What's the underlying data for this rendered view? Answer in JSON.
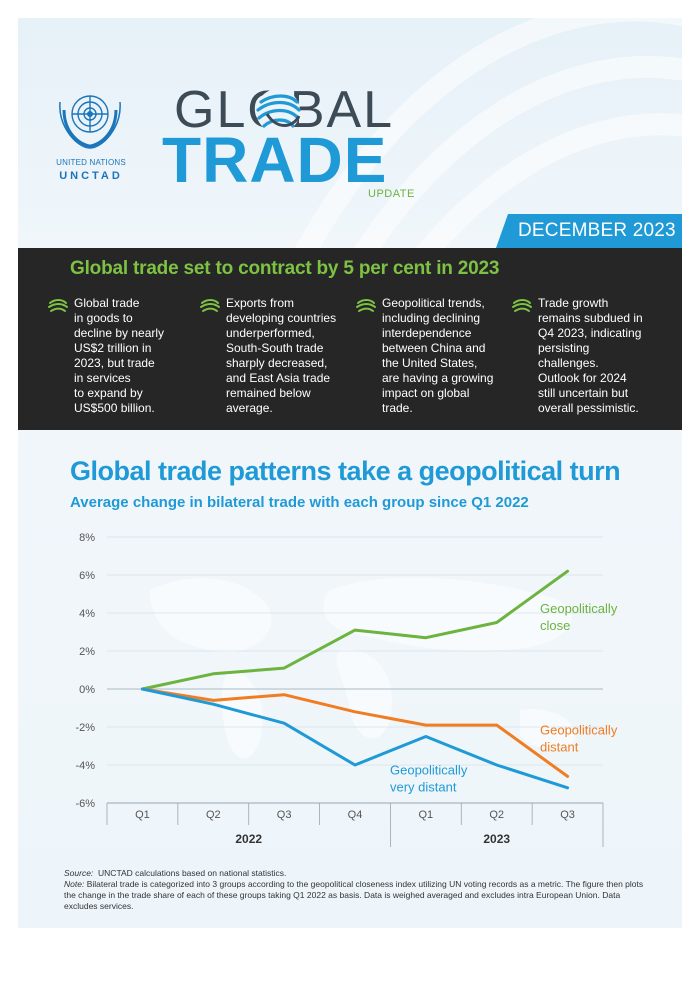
{
  "header": {
    "un_name": "UNITED NATIONS",
    "un_acronym": "UNCTAD",
    "title_line1": "GLOBAL",
    "title_line2": "TRADE",
    "title_line3": "UPDATE",
    "date": "DECEMBER 2023"
  },
  "highlights": {
    "title": "Global trade set to contract by 5 per cent in 2023",
    "items": [
      {
        "icon": "globe-swirl-icon",
        "lines": [
          "Global trade",
          "in goods to",
          "decline by nearly",
          "US$2 trillion in",
          "2023, but trade",
          "in services",
          "to expand by",
          "US$500 billion."
        ]
      },
      {
        "icon": "globe-swirl-icon",
        "lines": [
          "Exports from",
          "developing countries",
          "underperformed,",
          "South-South trade",
          "sharply decreased,",
          "and East Asia trade",
          "remained below",
          "average."
        ]
      },
      {
        "icon": "globe-swirl-icon",
        "lines": [
          "Geopolitical trends,",
          "including declining",
          "interdependence",
          "between China and",
          "the United States,",
          "are having a growing",
          "impact on global",
          "trade."
        ]
      },
      {
        "icon": "globe-swirl-icon",
        "lines": [
          "Trade growth",
          "remains subdued in",
          "Q4 2023, indicating",
          "persisting",
          "challenges.",
          "Outlook for 2024",
          "still uncertain but",
          "overall pessimistic."
        ]
      }
    ]
  },
  "chart_data": {
    "type": "line",
    "title": "Global trade patterns take a geopolitical turn",
    "subtitle": "Average change in bilateral trade with each group since Q1 2022",
    "categories": [
      "Q1",
      "Q2",
      "Q3",
      "Q4",
      "Q1",
      "Q2",
      "Q3"
    ],
    "year_groups": [
      {
        "label": "2022",
        "span": 4
      },
      {
        "label": "2023",
        "span": 3
      }
    ],
    "ylim": [
      -6,
      8
    ],
    "yticks": [
      8,
      6,
      4,
      2,
      0,
      -2,
      -4,
      -6
    ],
    "ytick_labels": [
      "8%",
      "6%",
      "4%",
      "2%",
      "0%",
      "-2%",
      "-4%",
      "-6%"
    ],
    "grid": true,
    "series": [
      {
        "name": "Geopolitically close",
        "label_lines": [
          "Geopolitically",
          "close"
        ],
        "color": "#6cb33f",
        "values": [
          0,
          0.8,
          1.1,
          3.1,
          2.7,
          3.5,
          6.2
        ]
      },
      {
        "name": "Geopolitically distant",
        "label_lines": [
          "Geopolitically",
          "distant"
        ],
        "color": "#f07d22",
        "values": [
          0,
          -0.6,
          -0.3,
          -1.2,
          -1.9,
          -1.9,
          -4.6
        ]
      },
      {
        "name": "Geopolitically very distant",
        "label_lines": [
          "Geopolitically",
          "very distant"
        ],
        "color": "#1f9ad6",
        "values": [
          0,
          -0.8,
          -1.8,
          -4.0,
          -2.5,
          -4.0,
          -5.2
        ]
      }
    ]
  },
  "notes": {
    "source_label": "Source:",
    "source_text": "UNCTAD calculations based on national statistics.",
    "note_label": "Note:",
    "note_text": "Bilateral trade is categorized into 3 groups according to the geopolitical closeness index utilizing UN voting records as a metric. The figure then plots the change in the trade share of each of these groups taking Q1 2022 as basis. Data is weighed averaged and excludes intra European Union. Data excludes services."
  }
}
